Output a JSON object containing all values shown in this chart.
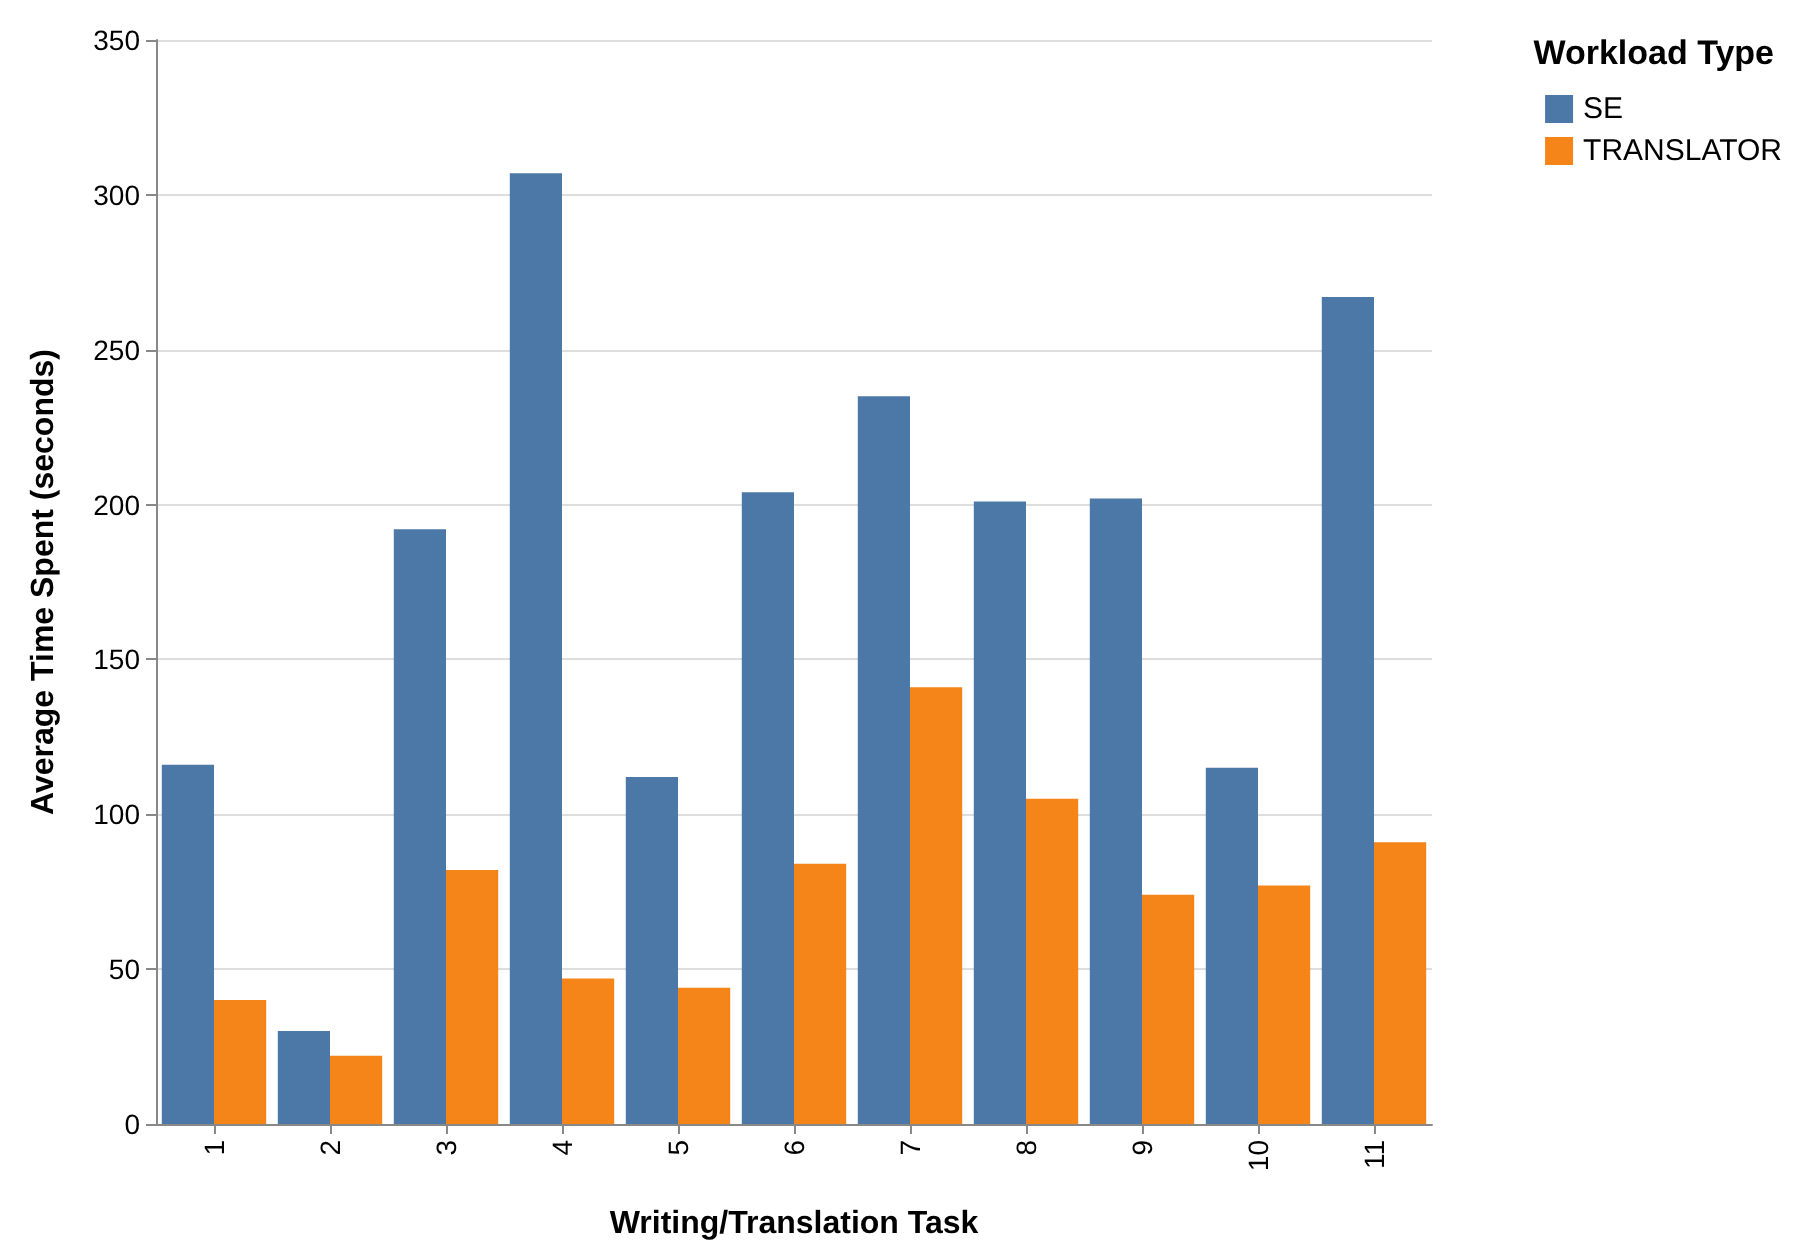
{
  "chart_data": {
    "type": "bar",
    "xlabel": "Writing/Translation Task",
    "ylabel": "Average Time Spent (seconds)",
    "legend_title": "Workload Type",
    "categories": [
      "1",
      "2",
      "3",
      "4",
      "5",
      "6",
      "7",
      "8",
      "9",
      "10",
      "11"
    ],
    "series": [
      {
        "name": "SE",
        "color": "#4c78a8",
        "values": [
          116,
          30,
          192,
          307,
          112,
          204,
          235,
          201,
          202,
          115,
          267
        ]
      },
      {
        "name": "TRANSLATOR",
        "color": "#f58518",
        "values": [
          40,
          22,
          82,
          47,
          44,
          84,
          141,
          105,
          74,
          77,
          91
        ]
      }
    ],
    "ylim": [
      0,
      350
    ],
    "yticks": [
      0,
      50,
      100,
      150,
      200,
      250,
      300,
      350
    ],
    "grid": "y",
    "legend": "top right"
  }
}
